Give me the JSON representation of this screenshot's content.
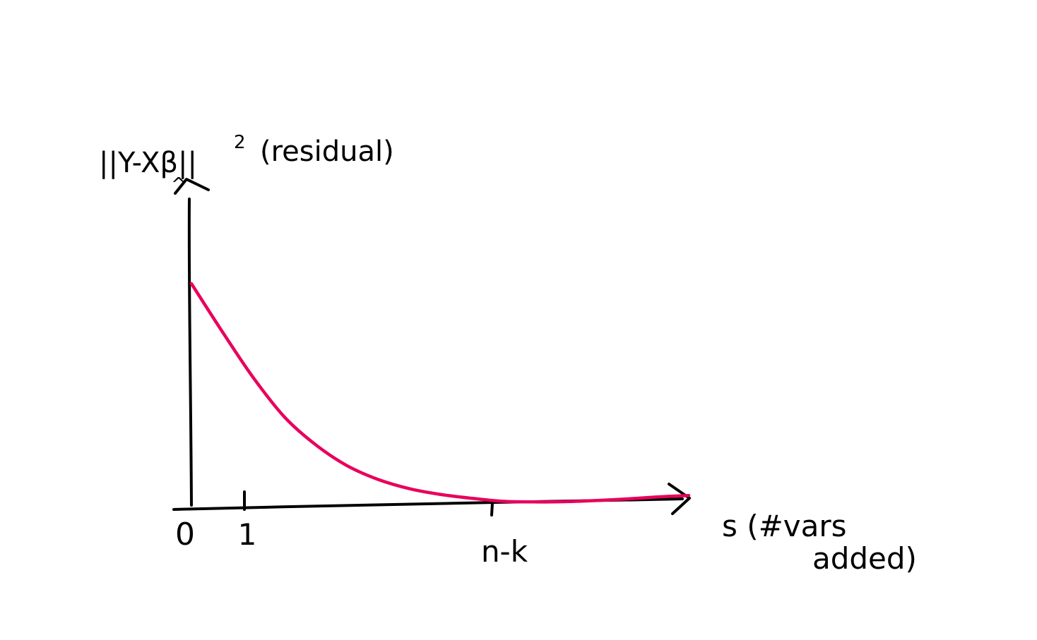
{
  "chart_data": {
    "type": "line",
    "title": "",
    "ylabel_parts": {
      "norm": "||Y-Xβ||",
      "hat": "^",
      "exponent": "2",
      "note": "(residual)"
    },
    "xlabel_lines": [
      "s (#vars",
      "added)"
    ],
    "x_ticks": [
      {
        "value": 0,
        "label": "0"
      },
      {
        "value": 1,
        "label": "1"
      },
      {
        "value": 5,
        "label": "n-k"
      }
    ],
    "xlim": [
      0,
      8
    ],
    "ylim": [
      0,
      1
    ],
    "series": [
      {
        "color": "#e8005c",
        "x": [
          0,
          0.5,
          1,
          1.5,
          2,
          2.5,
          3,
          3.5,
          4,
          4.5,
          5,
          5.5,
          6,
          6.5,
          7,
          7.5,
          8
        ],
        "y": [
          0.95,
          0.74,
          0.54,
          0.37,
          0.25,
          0.16,
          0.1,
          0.06,
          0.035,
          0.018,
          0.005,
          0.002,
          0.003,
          0.008,
          0.015,
          0.024,
          0.03
        ]
      }
    ],
    "grid": false,
    "legend": "none"
  }
}
